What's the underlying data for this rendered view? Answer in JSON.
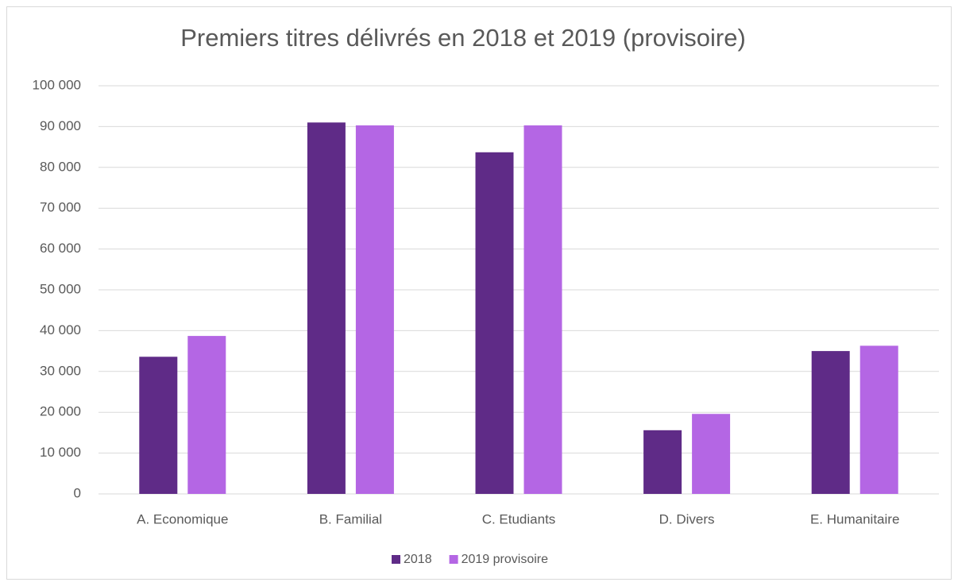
{
  "chart_data": {
    "type": "bar",
    "title": "Premiers titres délivrés en 2018 et 2019 (provisoire)",
    "categories": [
      "A. Economique",
      "B. Familial",
      "C. Etudiants",
      "D. Divers",
      "E. Humanitaire"
    ],
    "series": [
      {
        "name": "2018",
        "color": "#5f2b87",
        "values": [
          33600,
          91000,
          83700,
          15600,
          35000
        ]
      },
      {
        "name": "2019 provisoire",
        "color": "#b466e4",
        "values": [
          38700,
          90300,
          90300,
          19600,
          36300
        ]
      }
    ],
    "ylim": [
      0,
      100000
    ],
    "yticks": [
      {
        "value": 0,
        "label": "0"
      },
      {
        "value": 10000,
        "label": "10 000"
      },
      {
        "value": 20000,
        "label": "20 000"
      },
      {
        "value": 30000,
        "label": "30 000"
      },
      {
        "value": 40000,
        "label": "40 000"
      },
      {
        "value": 50000,
        "label": "50 000"
      },
      {
        "value": 60000,
        "label": "60 000"
      },
      {
        "value": 70000,
        "label": "70 000"
      },
      {
        "value": 80000,
        "label": "80 000"
      },
      {
        "value": 90000,
        "label": "90 000"
      },
      {
        "value": 100000,
        "label": "100 000"
      }
    ],
    "grid": true,
    "legend": "bottom"
  }
}
